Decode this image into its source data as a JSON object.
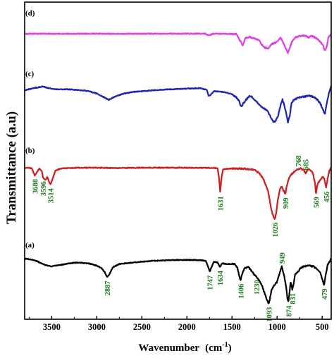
{
  "chart_data": {
    "type": "line",
    "xlabel": "Wavenumber",
    "xlabel_unit": "(cm",
    "xlabel_unit_sup": "-1",
    "xlabel_unit_close": ")",
    "ylabel": "Transmittance (a.u)",
    "xlim": [
      3800,
      400
    ],
    "x_reversed": true,
    "x_ticks": [
      3500,
      3000,
      2500,
      2000,
      1500,
      1000,
      500
    ],
    "y_ticks": [],
    "grid": false,
    "colors": {
      "a": "#000000",
      "b": "#cc1f1f",
      "c": "#1c24b0",
      "d": "#e23ee6",
      "annotation": "#1a7a1a"
    },
    "series": [
      {
        "id": "d",
        "panel_label": "(d)",
        "points": [
          [
            3800,
            0.5
          ],
          [
            3600,
            0.4
          ],
          [
            3400,
            0.45
          ],
          [
            3000,
            0.35
          ],
          [
            2800,
            0.45
          ],
          [
            2500,
            0.4
          ],
          [
            2200,
            0.4
          ],
          [
            2000,
            0.35
          ],
          [
            1800,
            0.35
          ],
          [
            1760,
            1.4
          ],
          [
            1700,
            0.35
          ],
          [
            1450,
            0.6
          ],
          [
            1420,
            4.0
          ],
          [
            1380,
            7.8
          ],
          [
            1350,
            3.0
          ],
          [
            1300,
            2.5
          ],
          [
            1250,
            3.5
          ],
          [
            1200,
            4.5
          ],
          [
            1150,
            9.0
          ],
          [
            1100,
            10.0
          ],
          [
            1060,
            7.0
          ],
          [
            1030,
            6.5
          ],
          [
            1000,
            5.5
          ],
          [
            960,
            3.0
          ],
          [
            930,
            6.5
          ],
          [
            900,
            10.5
          ],
          [
            880,
            13.0
          ],
          [
            860,
            10.0
          ],
          [
            840,
            6.0
          ],
          [
            800,
            3.0
          ],
          [
            760,
            2.0
          ],
          [
            700,
            1.5
          ],
          [
            650,
            2.8
          ],
          [
            620,
            1.5
          ],
          [
            560,
            3.5
          ],
          [
            520,
            5.5
          ],
          [
            490,
            8.0
          ],
          [
            470,
            11.5
          ],
          [
            450,
            9.0
          ],
          [
            430,
            2.5
          ],
          [
            400,
            0.5
          ]
        ]
      },
      {
        "id": "c",
        "panel_label": "(c)",
        "points": [
          [
            3800,
            1.5
          ],
          [
            3700,
            0.0
          ],
          [
            3600,
            -1.0
          ],
          [
            3500,
            0.5
          ],
          [
            3400,
            0.8
          ],
          [
            3300,
            0.8
          ],
          [
            3100,
            1.8
          ],
          [
            3000,
            3.5
          ],
          [
            2950,
            5.0
          ],
          [
            2900,
            6.5
          ],
          [
            2870,
            7.5
          ],
          [
            2850,
            7.0
          ],
          [
            2800,
            5.5
          ],
          [
            2700,
            3.5
          ],
          [
            2600,
            2.5
          ],
          [
            2400,
            1.5
          ],
          [
            2200,
            0.8
          ],
          [
            2000,
            0.3
          ],
          [
            1850,
            0.0
          ],
          [
            1780,
            1.2
          ],
          [
            1760,
            4.8
          ],
          [
            1740,
            4.5
          ],
          [
            1700,
            2.0
          ],
          [
            1600,
            2.5
          ],
          [
            1550,
            3.0
          ],
          [
            1500,
            4.0
          ],
          [
            1460,
            5.5
          ],
          [
            1420,
            8.5
          ],
          [
            1400,
            12.0
          ],
          [
            1370,
            9.5
          ],
          [
            1330,
            6.5
          ],
          [
            1300,
            5.0
          ],
          [
            1280,
            5.5
          ],
          [
            1240,
            8.0
          ],
          [
            1200,
            10.5
          ],
          [
            1160,
            12.5
          ],
          [
            1120,
            14.0
          ],
          [
            1090,
            16.5
          ],
          [
            1060,
            20.0
          ],
          [
            1040,
            22.0
          ],
          [
            1020,
            21.5
          ],
          [
            990,
            18.0
          ],
          [
            960,
            11.0
          ],
          [
            940,
            7.5
          ],
          [
            920,
            11.0
          ],
          [
            900,
            16.0
          ],
          [
            880,
            22.0
          ],
          [
            860,
            18.0
          ],
          [
            840,
            10.0
          ],
          [
            820,
            8.0
          ],
          [
            790,
            7.0
          ],
          [
            760,
            6.0
          ],
          [
            700,
            5.5
          ],
          [
            650,
            5.0
          ],
          [
            600,
            5.5
          ],
          [
            560,
            7.0
          ],
          [
            520,
            10.0
          ],
          [
            490,
            14.0
          ],
          [
            470,
            17.0
          ],
          [
            450,
            10.0
          ],
          [
            420,
            2.0
          ],
          [
            400,
            -1.0
          ]
        ]
      },
      {
        "id": "b",
        "panel_label": "(b)",
        "points": [
          [
            3800,
            0.0
          ],
          [
            3750,
            0.0
          ],
          [
            3720,
            0.5
          ],
          [
            3688,
            5.0
          ],
          [
            3670,
            3.5
          ],
          [
            3640,
            0.5
          ],
          [
            3610,
            2.0
          ],
          [
            3596,
            6.5
          ],
          [
            3570,
            8.0
          ],
          [
            3550,
            6.0
          ],
          [
            3514,
            11.0
          ],
          [
            3490,
            7.0
          ],
          [
            3460,
            2.0
          ],
          [
            3400,
            0.5
          ],
          [
            3200,
            0.0
          ],
          [
            3000,
            0.0
          ],
          [
            2800,
            0.2
          ],
          [
            2500,
            0.0
          ],
          [
            2200,
            0.0
          ],
          [
            2000,
            0.0
          ],
          [
            1800,
            0.1
          ],
          [
            1700,
            0.1
          ],
          [
            1660,
            0.5
          ],
          [
            1645,
            6.0
          ],
          [
            1631,
            16.0
          ],
          [
            1618,
            7.0
          ],
          [
            1600,
            1.0
          ],
          [
            1500,
            0.5
          ],
          [
            1400,
            0.5
          ],
          [
            1300,
            1.0
          ],
          [
            1250,
            1.5
          ],
          [
            1200,
            3.5
          ],
          [
            1150,
            7.5
          ],
          [
            1100,
            15.0
          ],
          [
            1070,
            25.0
          ],
          [
            1050,
            30.0
          ],
          [
            1026,
            33.0
          ],
          [
            1010,
            29.0
          ],
          [
            990,
            20.0
          ],
          [
            970,
            14.0
          ],
          [
            950,
            12.0
          ],
          [
            930,
            14.5
          ],
          [
            909,
            17.0
          ],
          [
            890,
            11.0
          ],
          [
            860,
            5.5
          ],
          [
            820,
            3.0
          ],
          [
            790,
            1.5
          ],
          [
            768,
            1.0
          ],
          [
            740,
            0.5
          ],
          [
            710,
            1.2
          ],
          [
            685,
            3.5
          ],
          [
            660,
            1.5
          ],
          [
            630,
            1.2
          ],
          [
            600,
            4.0
          ],
          [
            580,
            10.0
          ],
          [
            569,
            16.5
          ],
          [
            550,
            10.0
          ],
          [
            520,
            8.0
          ],
          [
            500,
            6.0
          ],
          [
            480,
            6.5
          ],
          [
            456,
            13.0
          ],
          [
            440,
            7.0
          ],
          [
            420,
            2.0
          ],
          [
            400,
            0.0
          ]
        ]
      },
      {
        "id": "a",
        "panel_label": "(a)",
        "points": [
          [
            3800,
            0.0
          ],
          [
            3750,
            0.3
          ],
          [
            3700,
            1.0
          ],
          [
            3650,
            2.0
          ],
          [
            3600,
            3.5
          ],
          [
            3550,
            4.5
          ],
          [
            3500,
            5.0
          ],
          [
            3450,
            4.5
          ],
          [
            3400,
            4.0
          ],
          [
            3300,
            3.0
          ],
          [
            3200,
            2.5
          ],
          [
            3100,
            3.0
          ],
          [
            3000,
            4.5
          ],
          [
            2950,
            6.0
          ],
          [
            2910,
            9.0
          ],
          [
            2887,
            12.0
          ],
          [
            2860,
            10.0
          ],
          [
            2820,
            5.5
          ],
          [
            2750,
            3.5
          ],
          [
            2600,
            2.5
          ],
          [
            2400,
            1.5
          ],
          [
            2200,
            1.0
          ],
          [
            2000,
            0.8
          ],
          [
            1850,
            1.0
          ],
          [
            1790,
            1.5
          ],
          [
            1760,
            6.0
          ],
          [
            1747,
            8.5
          ],
          [
            1735,
            6.5
          ],
          [
            1700,
            2.0
          ],
          [
            1660,
            2.5
          ],
          [
            1634,
            5.5
          ],
          [
            1610,
            3.0
          ],
          [
            1550,
            3.5
          ],
          [
            1470,
            3.5
          ],
          [
            1440,
            6.0
          ],
          [
            1420,
            11.0
          ],
          [
            1406,
            14.0
          ],
          [
            1390,
            10.0
          ],
          [
            1360,
            6.0
          ],
          [
            1320,
            5.5
          ],
          [
            1280,
            8.0
          ],
          [
            1250,
            10.5
          ],
          [
            1230,
            11.5
          ],
          [
            1200,
            14.0
          ],
          [
            1170,
            17.0
          ],
          [
            1140,
            22.0
          ],
          [
            1110,
            27.0
          ],
          [
            1093,
            29.0
          ],
          [
            1080,
            26.0
          ],
          [
            1060,
            20.0
          ],
          [
            1030,
            17.0
          ],
          [
            1000,
            15.0
          ],
          [
            975,
            10.0
          ],
          [
            949,
            5.0
          ],
          [
            925,
            10.0
          ],
          [
            900,
            18.0
          ],
          [
            885,
            26.0
          ],
          [
            874,
            28.0
          ],
          [
            862,
            22.0
          ],
          [
            850,
            15.0
          ],
          [
            831,
            20.0
          ],
          [
            815,
            16.0
          ],
          [
            800,
            10.0
          ],
          [
            770,
            8.5
          ],
          [
            740,
            6.0
          ],
          [
            700,
            5.0
          ],
          [
            650,
            4.5
          ],
          [
            600,
            5.0
          ],
          [
            560,
            6.5
          ],
          [
            520,
            9.0
          ],
          [
            495,
            14.0
          ],
          [
            479,
            17.0
          ],
          [
            465,
            12.0
          ],
          [
            440,
            4.0
          ],
          [
            400,
            0.0
          ]
        ]
      }
    ],
    "annotations": [
      {
        "series": "b",
        "x": 3688,
        "text": "3688"
      },
      {
        "series": "b",
        "x": 3596,
        "text": "3596"
      },
      {
        "series": "b",
        "x": 3514,
        "text": "3514"
      },
      {
        "series": "b",
        "x": 1631,
        "text": "1631"
      },
      {
        "series": "b",
        "x": 1026,
        "text": "1026"
      },
      {
        "series": "b",
        "x": 909,
        "text": "909"
      },
      {
        "series": "b",
        "x": 768,
        "text": "768",
        "above": true
      },
      {
        "series": "b",
        "x": 685,
        "text": "685",
        "above": true
      },
      {
        "series": "b",
        "x": 569,
        "text": "569"
      },
      {
        "series": "b",
        "x": 456,
        "text": "456"
      },
      {
        "series": "a",
        "x": 2887,
        "text": "2887"
      },
      {
        "series": "a",
        "x": 1747,
        "text": "1747"
      },
      {
        "series": "a",
        "x": 1634,
        "text": "1634"
      },
      {
        "series": "a",
        "x": 1406,
        "text": "1406"
      },
      {
        "series": "a",
        "x": 1230,
        "text": "1230"
      },
      {
        "series": "a",
        "x": 1093,
        "text": "1093"
      },
      {
        "series": "a",
        "x": 949,
        "text": "949",
        "above": true
      },
      {
        "series": "a",
        "x": 874,
        "text": "874"
      },
      {
        "series": "a",
        "x": 831,
        "text": "831"
      },
      {
        "series": "a",
        "x": 479,
        "text": "479"
      }
    ]
  }
}
